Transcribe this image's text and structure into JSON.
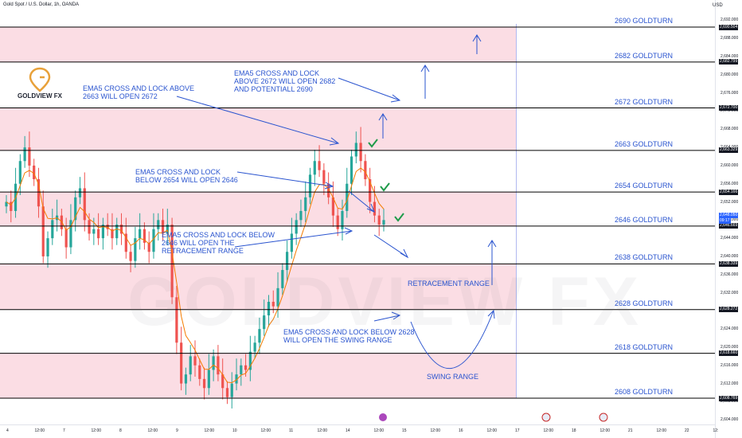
{
  "header": {
    "symbol": "Gold Spot / U.S. Dollar, 1h, OANDA",
    "currency": "USD"
  },
  "logo": {
    "text": "GOLDVIEW FX",
    "icon": "map-pin-icon"
  },
  "watermark": "GOLDVIEW FX",
  "colors": {
    "zone": "#fbdde4",
    "line": "#000000",
    "annotation": "#2a54cf",
    "up": "#26a69a",
    "down": "#ef5350",
    "ema": "#f57c00",
    "check": "#1e9b4a",
    "current_label": "#2962ff",
    "price_label": "#131722"
  },
  "chart_data": {
    "type": "candlestick",
    "title": "Gold Spot / U.S. Dollar, 1h, OANDA",
    "ylim": [
      2603,
      2692
    ],
    "y_ticks": [
      2604,
      2608,
      2612,
      2616,
      2620,
      2624,
      2628,
      2632,
      2636,
      2640,
      2644,
      2648,
      2652,
      2656,
      2660,
      2664,
      2668,
      2672,
      2676,
      2680,
      2684,
      2688,
      2692
    ],
    "x_ticks": [
      "4",
      "12:00",
      "7",
      "12:00",
      "8",
      "12:00",
      "9",
      "12:00",
      "10",
      "12:00",
      "11",
      "12:00",
      "14",
      "12:00",
      "15",
      "12:00",
      "16",
      "12:00",
      "17",
      "12:00",
      "18",
      "12:00",
      "21",
      "12:00",
      "22",
      "12:"
    ],
    "levels": [
      {
        "label": "2690 GOLDTURN",
        "price": 2690.504,
        "price_label": "2,690.504"
      },
      {
        "label": "2682 GOLDTURN",
        "price": 2682.799,
        "price_label": "2,682.799"
      },
      {
        "label": "2672 GOLDTURN",
        "price": 2672.7,
        "price_label": "2,672.700"
      },
      {
        "label": "2663 GOLDTURN",
        "price": 2663.329,
        "price_label": "2,663.329"
      },
      {
        "label": "2654 GOLDTURN",
        "price": 2654.166,
        "price_label": "2,654.166"
      },
      {
        "label": "2646 GOLDTURN",
        "price": 2646.669,
        "price_label": "2,646.669"
      },
      {
        "label": "2638 GOLDTURN",
        "price": 2638.339,
        "price_label": "2,638.339"
      },
      {
        "label": "2628 GOLDTURN",
        "price": 2628.272,
        "price_label": "2,628.272"
      },
      {
        "label": "2618 GOLDTURN",
        "price": 2618.66,
        "price_label": "2,618.660"
      },
      {
        "label": "2608 GOLDTURN",
        "price": 2608.769,
        "price_label": "2,608.769"
      }
    ],
    "zones": [
      [
        2682.799,
        2690.504
      ],
      [
        2663.329,
        2672.7
      ],
      [
        2646.669,
        2654.166
      ],
      [
        2628.272,
        2638.339
      ],
      [
        2608.769,
        2618.66
      ]
    ],
    "current_price": {
      "price": 2648.05,
      "label": "2,648.050",
      "countdown": "09:17"
    },
    "close_series": [
      2652,
      2650,
      2656,
      2661,
      2664,
      2660,
      2657,
      2651,
      2640,
      2644,
      2648,
      2649,
      2646,
      2642,
      2648,
      2653,
      2655,
      2648,
      2645,
      2646,
      2644,
      2647,
      2646,
      2644,
      2647,
      2645,
      2641,
      2639,
      2644,
      2646,
      2643,
      2641,
      2646,
      2648,
      2645,
      2647,
      2631,
      2621,
      2612,
      2614,
      2618,
      2616,
      2613,
      2611,
      2615,
      2618,
      2614,
      2611,
      2609,
      2612,
      2614,
      2616,
      2615,
      2619,
      2621,
      2624,
      2627,
      2630,
      2629,
      2633,
      2637,
      2641,
      2645,
      2648,
      2650,
      2653,
      2658,
      2661,
      2659,
      2656,
      2653,
      2649,
      2646,
      2650,
      2656,
      2662,
      2665,
      2661,
      2657,
      2652,
      2649,
      2647,
      2648
    ]
  },
  "annotations": [
    {
      "text": "EMA5 CROSS AND LOCK ABOVE\n2663 WILL OPEN 2672"
    },
    {
      "text": "EMA5 CROSS AND LOCK\nABOVE 2672 WILL OPEN 2682\nAND POTENTIALL 2690"
    },
    {
      "text": "EMA5 CROSS AND LOCK\nBELOW 2654 WILL OPEN 2646"
    },
    {
      "text": "EMA5 CROSS AND LOCK BELOW\n2646 WILL OPEN THE\nRETRACEMENT RANGE"
    },
    {
      "text": "RETRACEMENT RANGE"
    },
    {
      "text": "EMA5 CROSS AND LOCK BELOW 2628\nWILL OPEN THE SWING RANGE"
    },
    {
      "text": "SWING RANGE"
    }
  ]
}
